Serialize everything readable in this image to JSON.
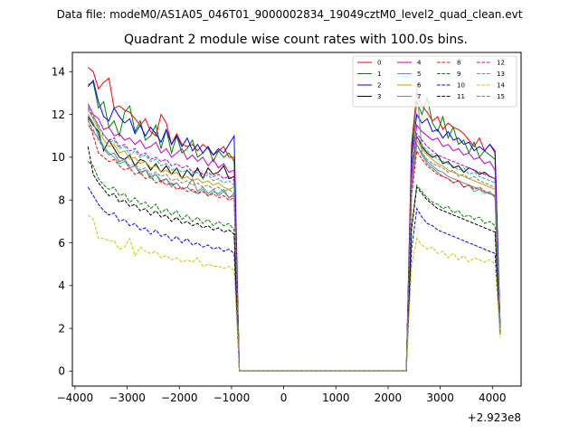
{
  "header": {
    "data_file": "Data file: modeM0/AS1A05_046T01_9000002834_19049cztM0_level2_quad_clean.evt"
  },
  "chart_data": {
    "type": "line",
    "title": "Quadrant 2 module wise count rates with 100.0s bins.",
    "xlabel": "",
    "ylabel": "",
    "x_offset_label": "+2.923e8",
    "xlim": [
      -4050,
      4550
    ],
    "ylim": [
      -0.7,
      14.9
    ],
    "x_ticks": [
      -4000,
      -3000,
      -2000,
      -1000,
      0,
      1000,
      2000,
      3000,
      4000
    ],
    "x_tick_labels": [
      "−4000",
      "−3000",
      "−2000",
      "−1000",
      "0",
      "1000",
      "2000",
      "3000",
      "4000"
    ],
    "y_ticks": [
      0,
      2,
      4,
      6,
      8,
      10,
      12,
      14
    ],
    "y_tick_labels": [
      "0",
      "2",
      "4",
      "6",
      "8",
      "10",
      "12",
      "14"
    ],
    "legend_position": "top-right",
    "x": [
      -3750,
      -3650,
      -3550,
      -3450,
      -3350,
      -3250,
      -3150,
      -3050,
      -2950,
      -2850,
      -2750,
      -2650,
      -2550,
      -2450,
      -2350,
      -2250,
      -2150,
      -2050,
      -1950,
      -1850,
      -1750,
      -1650,
      -1550,
      -1450,
      -1350,
      -1250,
      -1150,
      -1050,
      -950,
      -850,
      2350,
      2450,
      2550,
      2650,
      2750,
      2850,
      2950,
      3050,
      3150,
      3250,
      3350,
      3450,
      3550,
      3650,
      3750,
      3850,
      3950,
      4050,
      4150
    ],
    "series": [
      {
        "name": "0",
        "color": "#ff0000",
        "dash": "solid",
        "values": [
          14.2,
          14.0,
          13.2,
          13.5,
          13.7,
          12.3,
          12.4,
          12.2,
          12.1,
          11.8,
          11.5,
          11.8,
          11.2,
          11.0,
          12.0,
          11.6,
          10.6,
          11.1,
          10.6,
          10.5,
          10.6,
          10.3,
          10.6,
          10.4,
          10.1,
          10.3,
          10.5,
          10.0,
          10.0,
          0.0,
          0.0,
          10.6,
          13.0,
          12.4,
          12.1,
          11.7,
          11.9,
          11.3,
          11.6,
          11.4,
          11.3,
          11.1,
          10.8,
          10.5,
          10.9,
          10.3,
          10.6,
          10.2,
          2.0
        ]
      },
      {
        "name": "1",
        "color": "#008000",
        "dash": "solid",
        "values": [
          13.4,
          13.5,
          12.3,
          12.6,
          11.4,
          11.7,
          11.0,
          12.1,
          12.4,
          11.2,
          11.7,
          10.8,
          11.0,
          11.5,
          10.4,
          11.3,
          10.2,
          11.0,
          10.2,
          10.4,
          10.8,
          10.0,
          10.2,
          10.5,
          9.8,
          10.3,
          10.0,
          10.2,
          9.8,
          0.0,
          0.0,
          10.3,
          12.6,
          12.0,
          12.8,
          11.6,
          11.2,
          11.9,
          10.9,
          11.4,
          10.6,
          10.8,
          10.2,
          10.7,
          10.0,
          10.3,
          10.1,
          9.9,
          2.0
        ]
      },
      {
        "name": "2",
        "color": "#0000ff",
        "dash": "solid",
        "values": [
          13.3,
          13.6,
          12.6,
          11.9,
          11.7,
          12.3,
          11.9,
          11.6,
          11.8,
          11.1,
          11.5,
          11.0,
          11.4,
          11.1,
          10.7,
          11.3,
          10.6,
          11.0,
          10.5,
          10.9,
          10.3,
          10.6,
          10.2,
          10.5,
          10.1,
          10.4,
          10.2,
          10.6,
          11.0,
          0.0,
          0.0,
          10.1,
          12.0,
          11.6,
          11.8,
          11.2,
          11.3,
          10.9,
          11.2,
          10.8,
          10.9,
          10.6,
          10.7,
          10.3,
          10.5,
          10.3,
          10.6,
          10.3,
          2.1
        ]
      },
      {
        "name": "3",
        "color": "#000000",
        "dash": "solid",
        "values": [
          11.9,
          11.5,
          11.2,
          10.3,
          10.8,
          10.4,
          10.0,
          9.9,
          10.1,
          9.6,
          9.9,
          9.8,
          9.4,
          9.7,
          9.3,
          9.6,
          9.2,
          9.5,
          9.0,
          9.4,
          9.1,
          9.5,
          9.0,
          9.5,
          9.2,
          9.3,
          9.6,
          9.0,
          9.1,
          0.0,
          0.0,
          9.2,
          11.0,
          10.5,
          10.2,
          10.0,
          10.1,
          9.7,
          9.8,
          9.5,
          9.6,
          9.3,
          9.5,
          9.4,
          9.2,
          9.3,
          9.1,
          9.0,
          1.9
        ]
      },
      {
        "name": "4",
        "color": "#c000c0",
        "dash": "solid",
        "values": [
          12.5,
          12.0,
          11.8,
          11.3,
          11.4,
          11.0,
          11.1,
          10.8,
          10.9,
          10.6,
          10.8,
          10.4,
          10.5,
          10.7,
          10.2,
          10.4,
          10.0,
          10.2,
          10.4,
          9.9,
          10.1,
          9.8,
          10.0,
          9.6,
          9.9,
          9.5,
          9.7,
          9.3,
          9.4,
          0.0,
          0.0,
          9.6,
          11.5,
          11.2,
          11.0,
          10.8,
          10.9,
          10.5,
          10.6,
          10.3,
          10.4,
          10.1,
          10.2,
          9.9,
          10.0,
          9.7,
          9.8,
          9.4,
          1.9
        ]
      },
      {
        "name": "5",
        "color": "#20b2aa",
        "dash": "solid",
        "values": [
          12.0,
          11.6,
          11.0,
          10.5,
          10.2,
          10.0,
          9.7,
          9.8,
          9.5,
          9.6,
          9.2,
          9.4,
          9.0,
          9.2,
          8.8,
          9.0,
          8.6,
          8.8,
          8.5,
          8.6,
          8.4,
          8.3,
          8.5,
          8.2,
          8.4,
          8.3,
          8.5,
          8.1,
          8.2,
          0.0,
          0.0,
          8.5,
          10.6,
          10.1,
          9.7,
          9.5,
          9.3,
          9.1,
          9.0,
          8.8,
          8.9,
          8.6,
          8.7,
          8.4,
          8.5,
          8.3,
          8.4,
          8.1,
          1.8
        ]
      },
      {
        "name": "6",
        "color": "#c8a000",
        "dash": "solid",
        "values": [
          12.2,
          11.8,
          11.3,
          10.8,
          10.5,
          10.6,
          10.2,
          10.3,
          9.9,
          10.0,
          9.7,
          9.8,
          9.5,
          9.6,
          9.3,
          9.4,
          9.2,
          9.3,
          9.0,
          9.1,
          8.9,
          9.0,
          8.8,
          8.9,
          8.7,
          8.8,
          8.6,
          8.5,
          8.6,
          0.0,
          0.0,
          8.7,
          10.8,
          10.4,
          10.1,
          9.9,
          9.7,
          9.6,
          9.4,
          9.3,
          9.2,
          9.1,
          9.0,
          8.9,
          8.8,
          8.7,
          8.6,
          8.5,
          1.8
        ]
      },
      {
        "name": "7",
        "color": "#808080",
        "dash": "solid",
        "values": [
          11.5,
          11.2,
          10.9,
          10.4,
          10.1,
          10.2,
          9.8,
          9.9,
          9.5,
          9.6,
          9.3,
          9.4,
          9.1,
          9.2,
          8.9,
          9.0,
          8.7,
          8.8,
          8.5,
          8.6,
          9.0,
          8.4,
          8.6,
          8.3,
          8.5,
          8.2,
          8.4,
          8.1,
          8.3,
          0.0,
          0.0,
          8.4,
          13.4,
          10.2,
          9.8,
          9.6,
          9.4,
          9.3,
          9.1,
          9.0,
          8.9,
          8.8,
          8.7,
          8.6,
          8.5,
          8.4,
          8.3,
          8.2,
          1.8
        ]
      },
      {
        "name": "8",
        "color": "#ff0000",
        "dash": "dashed",
        "values": [
          11.8,
          11.0,
          10.2,
          10.0,
          9.8,
          9.9,
          9.6,
          9.4,
          9.5,
          9.2,
          9.3,
          9.0,
          9.1,
          8.8,
          8.9,
          8.7,
          8.8,
          8.5,
          8.6,
          8.4,
          8.5,
          8.3,
          8.4,
          8.2,
          8.3,
          8.1,
          8.2,
          8.0,
          8.1,
          0.0,
          0.0,
          8.2,
          10.3,
          9.9,
          9.6,
          9.4,
          9.2,
          9.1,
          9.0,
          8.8,
          8.9,
          8.6,
          8.7,
          8.5,
          8.6,
          8.4,
          8.3,
          8.2,
          1.8
        ]
      },
      {
        "name": "9",
        "color": "#008000",
        "dash": "dashed",
        "values": [
          9.8,
          9.6,
          9.0,
          8.7,
          8.5,
          8.6,
          8.2,
          8.3,
          7.9,
          8.1,
          7.8,
          7.9,
          7.6,
          7.8,
          7.4,
          7.6,
          7.3,
          7.5,
          7.1,
          7.3,
          7.0,
          7.2,
          6.9,
          7.1,
          6.8,
          7.0,
          6.8,
          6.9,
          6.6,
          0.0,
          0.0,
          6.8,
          8.7,
          8.4,
          8.1,
          7.9,
          7.8,
          7.6,
          7.7,
          7.4,
          7.5,
          7.2,
          7.3,
          7.1,
          7.2,
          6.9,
          7.0,
          6.8,
          1.7
        ]
      },
      {
        "name": "10",
        "color": "#0000ff",
        "dash": "dashed",
        "values": [
          8.6,
          8.2,
          7.8,
          7.5,
          7.3,
          7.4,
          7.0,
          7.1,
          6.8,
          6.9,
          6.6,
          6.7,
          6.4,
          6.6,
          6.3,
          6.4,
          6.1,
          6.3,
          6.0,
          6.2,
          5.9,
          6.0,
          5.8,
          5.9,
          5.7,
          5.8,
          5.6,
          5.7,
          5.5,
          0.0,
          0.0,
          5.7,
          7.6,
          7.2,
          6.9,
          6.8,
          6.6,
          6.5,
          6.4,
          6.3,
          6.2,
          6.1,
          6.0,
          5.9,
          5.8,
          5.7,
          5.6,
          5.5,
          1.6
        ]
      },
      {
        "name": "11",
        "color": "#000000",
        "dash": "dashed",
        "values": [
          10.5,
          9.2,
          8.8,
          8.5,
          8.2,
          8.3,
          7.9,
          8.0,
          7.7,
          7.8,
          7.5,
          7.6,
          7.3,
          7.5,
          7.2,
          7.3,
          7.0,
          7.2,
          6.9,
          7.0,
          6.8,
          6.9,
          6.7,
          6.8,
          6.6,
          6.7,
          6.5,
          6.6,
          6.4,
          0.0,
          0.0,
          6.6,
          8.6,
          8.3,
          8.0,
          7.8,
          7.6,
          7.5,
          7.4,
          7.3,
          7.2,
          7.1,
          7.0,
          6.9,
          6.8,
          6.7,
          6.6,
          6.5,
          1.7
        ]
      },
      {
        "name": "12",
        "color": "#c000c0",
        "dash": "dashed",
        "values": [
          12.3,
          11.9,
          11.5,
          11.0,
          10.8,
          10.9,
          10.5,
          10.6,
          10.3,
          10.4,
          10.1,
          10.2,
          9.9,
          10.0,
          9.8,
          9.9,
          9.6,
          9.7,
          9.5,
          9.6,
          9.3,
          9.4,
          9.2,
          9.3,
          9.1,
          9.2,
          9.0,
          9.1,
          8.9,
          0.0,
          0.0,
          9.1,
          11.1,
          10.8,
          10.5,
          10.3,
          10.1,
          10.0,
          9.9,
          9.8,
          9.7,
          9.6,
          9.5,
          9.4,
          9.3,
          9.2,
          9.1,
          9.0,
          1.9
        ]
      },
      {
        "name": "13",
        "color": "#20b2aa",
        "dash": "dashed",
        "values": [
          12.4,
          12.0,
          11.4,
          11.1,
          10.7,
          10.8,
          10.4,
          10.5,
          10.1,
          10.3,
          10.0,
          10.1,
          9.8,
          9.9,
          9.6,
          9.7,
          9.4,
          9.5,
          9.3,
          9.4,
          9.2,
          9.3,
          9.0,
          9.2,
          8.9,
          9.0,
          8.8,
          8.9,
          8.7,
          0.0,
          0.0,
          8.9,
          11.0,
          10.6,
          10.3,
          10.1,
          9.9,
          9.8,
          9.7,
          9.6,
          9.4,
          9.5,
          9.2,
          9.3,
          9.1,
          9.0,
          8.9,
          8.8,
          1.8
        ]
      },
      {
        "name": "14",
        "color": "#c8c800",
        "dash": "dashed",
        "values": [
          7.3,
          7.1,
          6.2,
          6.2,
          6.1,
          6.1,
          5.7,
          5.8,
          6.2,
          5.4,
          5.8,
          5.6,
          5.5,
          5.6,
          5.3,
          5.4,
          5.2,
          5.3,
          5.1,
          5.2,
          5.1,
          5.3,
          4.9,
          5.0,
          4.9,
          4.9,
          4.8,
          4.9,
          4.7,
          0.0,
          0.0,
          4.9,
          6.2,
          5.9,
          5.7,
          5.8,
          5.5,
          5.6,
          5.3,
          5.5,
          5.2,
          5.4,
          5.1,
          5.3,
          5.2,
          5.1,
          5.2,
          5.0,
          1.6
        ]
      },
      {
        "name": "15",
        "color": "#808080",
        "dash": "dashed",
        "values": [
          11.7,
          11.3,
          10.8,
          10.4,
          10.1,
          10.2,
          9.8,
          9.9,
          9.6,
          9.7,
          9.4,
          9.5,
          9.2,
          9.3,
          9.1,
          9.2,
          8.9,
          9.0,
          8.8,
          8.9,
          8.7,
          8.8,
          8.6,
          8.7,
          8.5,
          8.6,
          8.4,
          8.5,
          8.3,
          0.0,
          0.0,
          8.5,
          10.6,
          10.2,
          9.9,
          9.7,
          9.6,
          9.5,
          9.3,
          9.4,
          9.1,
          9.2,
          9.0,
          9.1,
          8.9,
          8.8,
          8.7,
          8.6,
          1.8
        ]
      }
    ]
  }
}
